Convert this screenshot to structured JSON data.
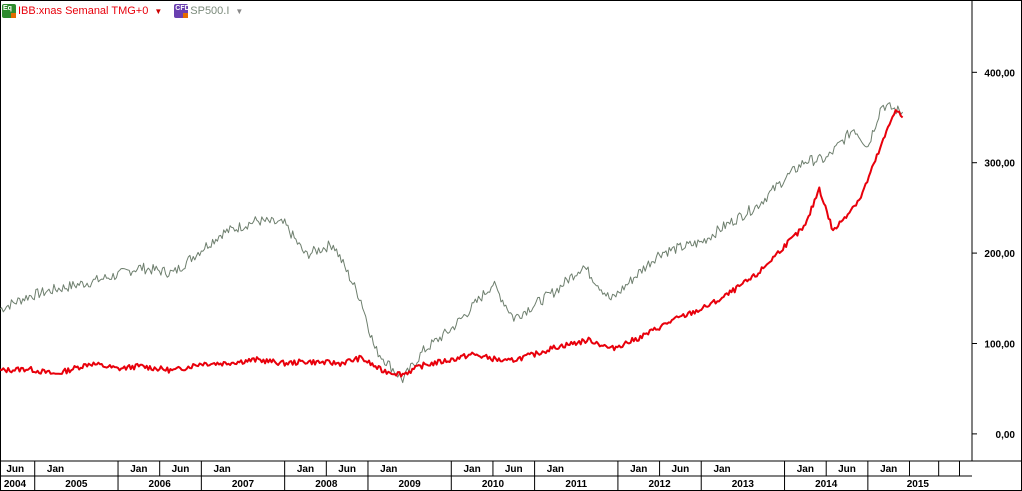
{
  "legend": {
    "primary": {
      "icon": "equity-icon",
      "icon_text": "Eq",
      "label": "IBB:xnas Semanal TMG+0",
      "color": "#e8000b"
    },
    "secondary": {
      "icon": "cfd-icon",
      "icon_text": "CFD",
      "label": "SP500.I",
      "color": "#6e7f6e"
    }
  },
  "chart_data": {
    "type": "line",
    "title": "",
    "xlabel": "",
    "ylabel": "",
    "ylim": [
      -30,
      480
    ],
    "y_ticks": [
      "0,00",
      "100,00",
      "200,00",
      "300,00",
      "400,00"
    ],
    "x_months": [
      "Jun",
      "Jan",
      "Jan",
      "Jun",
      "Jan",
      "Jan",
      "Jun",
      "Jan",
      "Jan",
      "Jun",
      "Jan",
      "Jan",
      "Jun",
      "Jan",
      "Jan",
      "Jun",
      "Jan"
    ],
    "x_years": [
      "2004",
      "2005",
      "2006",
      "2007",
      "2008",
      "2009",
      "2010",
      "2011",
      "2012",
      "2013",
      "2014",
      "2015"
    ],
    "series": [
      {
        "name": "IBB:xnas Semanal TMG+0",
        "color": "#e8000b",
        "x": [
          "2004-05",
          "2004-09",
          "2005-01",
          "2005-06",
          "2005-10",
          "2006-01",
          "2006-06",
          "2006-10",
          "2007-01",
          "2007-06",
          "2007-10",
          "2008-01",
          "2008-06",
          "2008-09",
          "2008-12",
          "2009-03",
          "2009-06",
          "2009-10",
          "2010-01",
          "2010-06",
          "2010-10",
          "2011-01",
          "2011-06",
          "2011-09",
          "2012-01",
          "2012-06",
          "2012-10",
          "2013-01",
          "2013-06",
          "2013-10",
          "2014-01",
          "2014-03",
          "2014-05",
          "2014-09",
          "2014-12",
          "2015-02",
          "2015-03"
        ],
        "values": [
          70,
          72,
          66,
          78,
          72,
          75,
          70,
          78,
          78,
          82,
          78,
          80,
          78,
          84,
          70,
          66,
          76,
          82,
          88,
          80,
          88,
          96,
          104,
          94,
          106,
          126,
          138,
          150,
          176,
          208,
          230,
          272,
          224,
          262,
          320,
          360,
          350
        ]
      },
      {
        "name": "SP500.I",
        "color": "#6e7f6e",
        "x": [
          "2004-05",
          "2004-09",
          "2005-01",
          "2005-06",
          "2005-10",
          "2006-01",
          "2006-06",
          "2006-10",
          "2007-01",
          "2007-06",
          "2007-10",
          "2008-01",
          "2008-05",
          "2008-09",
          "2008-11",
          "2009-03",
          "2009-06",
          "2009-10",
          "2010-01",
          "2010-04",
          "2010-07",
          "2011-01",
          "2011-05",
          "2011-09",
          "2012-01",
          "2012-04",
          "2012-10",
          "2013-01",
          "2013-06",
          "2013-10",
          "2014-01",
          "2014-04",
          "2014-08",
          "2014-10",
          "2014-12",
          "2015-03"
        ],
        "values": [
          138,
          152,
          160,
          168,
          176,
          184,
          178,
          204,
          222,
          236,
          232,
          198,
          210,
          148,
          94,
          60,
          92,
          116,
          140,
          166,
          128,
          158,
          186,
          148,
          178,
          200,
          212,
          228,
          252,
          282,
          302,
          304,
          338,
          318,
          364,
          356
        ]
      }
    ]
  }
}
